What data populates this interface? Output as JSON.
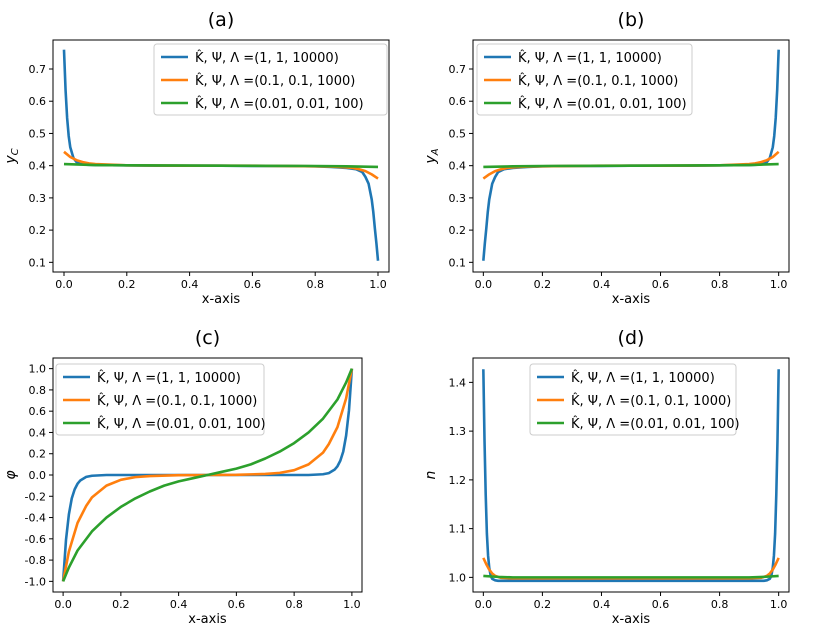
{
  "figure": {
    "legend_labels": [
      "K̂, Ψ, Λ =(1, 1, 10000)",
      "K̂, Ψ, Λ =(0.1, 0.1, 1000)",
      "K̂, Ψ, Λ =(0.01, 0.01, 100)"
    ],
    "series_colors": [
      "#1f77b4",
      "#ff7f0e",
      "#2ca02c"
    ]
  },
  "chart_data": [
    {
      "id": "a",
      "type": "line",
      "title": "(a)",
      "xlabel": "x-axis",
      "ylabel": "y_C",
      "xlim": [
        -0.035,
        1.035
      ],
      "ylim": [
        0.07,
        0.79
      ],
      "xticks": [
        0.0,
        0.2,
        0.4,
        0.6,
        0.8,
        1.0
      ],
      "xtick_labels": [
        "0.0",
        "0.2",
        "0.4",
        "0.6",
        "0.8",
        "1.0"
      ],
      "yticks": [
        0.1,
        0.2,
        0.3,
        0.4,
        0.5,
        0.6,
        0.7
      ],
      "ytick_labels": [
        "0.1",
        "0.2",
        "0.3",
        "0.4",
        "0.5",
        "0.6",
        "0.7"
      ],
      "legend_loc": "top-right",
      "series": [
        {
          "name": "K̂, Ψ, Λ =(1, 1, 10000)",
          "color": "#1f77b4",
          "x": [
            0.0,
            0.005,
            0.01,
            0.015,
            0.02,
            0.03,
            0.04,
            0.05,
            0.07,
            0.1,
            0.2,
            0.3,
            0.4,
            0.5,
            0.6,
            0.7,
            0.8,
            0.85,
            0.9,
            0.93,
            0.95,
            0.96,
            0.97,
            0.98,
            0.985,
            0.99,
            0.995,
            1.0
          ],
          "y": [
            0.76,
            0.635,
            0.548,
            0.492,
            0.457,
            0.424,
            0.411,
            0.406,
            0.403,
            0.402,
            0.401,
            0.4,
            0.4,
            0.4,
            0.399,
            0.399,
            0.398,
            0.396,
            0.393,
            0.389,
            0.38,
            0.365,
            0.344,
            0.295,
            0.256,
            0.205,
            0.158,
            0.105
          ]
        },
        {
          "name": "K̂, Ψ, Λ =(0.1, 0.1, 1000)",
          "color": "#ff7f0e",
          "x": [
            0.0,
            0.02,
            0.04,
            0.06,
            0.08,
            0.1,
            0.15,
            0.2,
            0.4,
            0.6,
            0.8,
            0.85,
            0.9,
            0.92,
            0.94,
            0.96,
            0.98,
            1.0
          ],
          "y": [
            0.443,
            0.427,
            0.417,
            0.411,
            0.407,
            0.405,
            0.403,
            0.401,
            0.4,
            0.4,
            0.398,
            0.397,
            0.395,
            0.393,
            0.389,
            0.383,
            0.373,
            0.36
          ]
        },
        {
          "name": "K̂, Ψ, Λ =(0.01, 0.01, 100)",
          "color": "#2ca02c",
          "x": [
            0.0,
            0.1,
            0.2,
            0.5,
            0.8,
            0.9,
            1.0
          ],
          "y": [
            0.405,
            0.402,
            0.401,
            0.4,
            0.399,
            0.398,
            0.396
          ]
        }
      ]
    },
    {
      "id": "b",
      "type": "line",
      "title": "(b)",
      "xlabel": "x-axis",
      "ylabel": "y_A",
      "xlim": [
        -0.035,
        1.035
      ],
      "ylim": [
        0.07,
        0.79
      ],
      "xticks": [
        0.0,
        0.2,
        0.4,
        0.6,
        0.8,
        1.0
      ],
      "xtick_labels": [
        "0.0",
        "0.2",
        "0.4",
        "0.6",
        "0.8",
        "1.0"
      ],
      "yticks": [
        0.1,
        0.2,
        0.3,
        0.4,
        0.5,
        0.6,
        0.7
      ],
      "ytick_labels": [
        "0.1",
        "0.2",
        "0.3",
        "0.4",
        "0.5",
        "0.6",
        "0.7"
      ],
      "legend_loc": "top-right",
      "series": [
        {
          "name": "K̂, Ψ, Λ =(1, 1, 10000)",
          "color": "#1f77b4",
          "x": [
            0.0,
            0.005,
            0.01,
            0.015,
            0.02,
            0.03,
            0.04,
            0.05,
            0.07,
            0.1,
            0.15,
            0.2,
            0.3,
            0.4,
            0.5,
            0.6,
            0.7,
            0.8,
            0.9,
            0.93,
            0.95,
            0.96,
            0.97,
            0.98,
            0.985,
            0.99,
            0.995,
            1.0
          ],
          "y": [
            0.105,
            0.158,
            0.205,
            0.256,
            0.295,
            0.344,
            0.365,
            0.38,
            0.389,
            0.393,
            0.396,
            0.398,
            0.399,
            0.399,
            0.4,
            0.4,
            0.4,
            0.401,
            0.402,
            0.403,
            0.406,
            0.411,
            0.424,
            0.457,
            0.492,
            0.548,
            0.635,
            0.76
          ]
        },
        {
          "name": "K̂, Ψ, Λ =(0.1, 0.1, 1000)",
          "color": "#ff7f0e",
          "x": [
            0.0,
            0.02,
            0.04,
            0.06,
            0.08,
            0.1,
            0.15,
            0.2,
            0.4,
            0.6,
            0.8,
            0.85,
            0.9,
            0.92,
            0.94,
            0.96,
            0.98,
            1.0
          ],
          "y": [
            0.36,
            0.373,
            0.383,
            0.389,
            0.393,
            0.395,
            0.397,
            0.398,
            0.4,
            0.4,
            0.401,
            0.403,
            0.405,
            0.407,
            0.411,
            0.417,
            0.427,
            0.443
          ]
        },
        {
          "name": "K̂, Ψ, Λ =(0.01, 0.01, 100)",
          "color": "#2ca02c",
          "x": [
            0.0,
            0.1,
            0.2,
            0.5,
            0.8,
            0.9,
            1.0
          ],
          "y": [
            0.396,
            0.398,
            0.399,
            0.4,
            0.401,
            0.402,
            0.405
          ]
        }
      ]
    },
    {
      "id": "c",
      "type": "line",
      "title": "(c)",
      "xlabel": "x-axis",
      "ylabel": "φ",
      "xlim": [
        -0.035,
        1.035
      ],
      "ylim": [
        -1.1,
        1.1
      ],
      "xticks": [
        0.0,
        0.2,
        0.4,
        0.6,
        0.8,
        1.0
      ],
      "xtick_labels": [
        "0.0",
        "0.2",
        "0.4",
        "0.6",
        "0.8",
        "1.0"
      ],
      "yticks": [
        -1.0,
        -0.8,
        -0.6,
        -0.4,
        -0.2,
        0.0,
        0.2,
        0.4,
        0.6,
        0.8,
        1.0
      ],
      "ytick_labels": [
        "-1.0",
        "-0.8",
        "-0.6",
        "-0.4",
        "-0.2",
        "0.0",
        "0.2",
        "0.4",
        "0.6",
        "0.8",
        "1.0"
      ],
      "legend_loc": "top-left",
      "series": [
        {
          "name": "K̂, Ψ, Λ =(1, 1, 10000)",
          "color": "#1f77b4",
          "x": [
            0.0,
            0.01,
            0.02,
            0.03,
            0.04,
            0.05,
            0.06,
            0.08,
            0.1,
            0.15,
            0.5,
            0.85,
            0.9,
            0.92,
            0.94,
            0.95,
            0.96,
            0.97,
            0.98,
            0.99,
            1.0
          ],
          "y": [
            -1.0,
            -0.61,
            -0.37,
            -0.22,
            -0.135,
            -0.082,
            -0.05,
            -0.018,
            -0.007,
            0.0,
            0.0,
            0.0,
            0.007,
            0.018,
            0.05,
            0.082,
            0.135,
            0.22,
            0.37,
            0.61,
            1.0
          ]
        },
        {
          "name": "K̂, Ψ, Λ =(0.1, 0.1, 1000)",
          "color": "#ff7f0e",
          "x": [
            0.0,
            0.02,
            0.05,
            0.08,
            0.1,
            0.15,
            0.2,
            0.25,
            0.3,
            0.4,
            0.5,
            0.6,
            0.7,
            0.75,
            0.8,
            0.85,
            0.9,
            0.92,
            0.95,
            0.98,
            1.0
          ],
          "y": [
            -1.0,
            -0.72,
            -0.45,
            -0.29,
            -0.21,
            -0.1,
            -0.045,
            -0.02,
            -0.01,
            -0.002,
            0.0,
            0.002,
            0.01,
            0.02,
            0.045,
            0.1,
            0.21,
            0.29,
            0.45,
            0.72,
            1.0
          ]
        },
        {
          "name": "K̂, Ψ, Λ =(0.01, 0.01, 100)",
          "color": "#2ca02c",
          "x": [
            0.0,
            0.02,
            0.05,
            0.1,
            0.15,
            0.2,
            0.25,
            0.3,
            0.35,
            0.4,
            0.45,
            0.5,
            0.55,
            0.6,
            0.65,
            0.7,
            0.75,
            0.8,
            0.85,
            0.9,
            0.95,
            0.98,
            1.0
          ],
          "y": [
            -1.0,
            -0.87,
            -0.71,
            -0.53,
            -0.4,
            -0.3,
            -0.22,
            -0.155,
            -0.1,
            -0.06,
            -0.03,
            0.0,
            0.03,
            0.06,
            0.1,
            0.155,
            0.22,
            0.3,
            0.4,
            0.53,
            0.71,
            0.87,
            1.0
          ]
        }
      ]
    },
    {
      "id": "d",
      "type": "line",
      "title": "(d)",
      "xlabel": "x-axis",
      "ylabel": "n",
      "xlim": [
        -0.035,
        1.035
      ],
      "ylim": [
        0.97,
        1.45
      ],
      "xticks": [
        0.0,
        0.2,
        0.4,
        0.6,
        0.8,
        1.0
      ],
      "xtick_labels": [
        "0.0",
        "0.2",
        "0.4",
        "0.6",
        "0.8",
        "1.0"
      ],
      "yticks": [
        1.0,
        1.1,
        1.2,
        1.3,
        1.4
      ],
      "ytick_labels": [
        "1.0",
        "1.1",
        "1.2",
        "1.3",
        "1.4"
      ],
      "legend_loc": "top-center",
      "series": [
        {
          "name": "K̂, Ψ, Λ =(1, 1, 10000)",
          "color": "#1f77b4",
          "x": [
            0.0,
            0.004,
            0.008,
            0.012,
            0.016,
            0.02,
            0.025,
            0.03,
            0.04,
            0.05,
            0.1,
            0.5,
            0.9,
            0.95,
            0.96,
            0.97,
            0.975,
            0.98,
            0.984,
            0.988,
            0.992,
            0.996,
            1.0
          ],
          "y": [
            1.427,
            1.28,
            1.17,
            1.09,
            1.045,
            1.02,
            1.003,
            0.997,
            0.994,
            0.993,
            0.993,
            0.993,
            0.993,
            0.993,
            0.994,
            0.997,
            1.003,
            1.02,
            1.045,
            1.09,
            1.17,
            1.28,
            1.427
          ]
        },
        {
          "name": "K̂, Ψ, Λ =(0.1, 0.1, 1000)",
          "color": "#ff7f0e",
          "x": [
            0.0,
            0.01,
            0.02,
            0.03,
            0.04,
            0.06,
            0.1,
            0.5,
            0.9,
            0.94,
            0.96,
            0.97,
            0.98,
            0.99,
            1.0
          ],
          "y": [
            1.04,
            1.027,
            1.016,
            1.008,
            1.003,
            0.999,
            0.998,
            0.998,
            0.998,
            0.999,
            1.003,
            1.008,
            1.016,
            1.027,
            1.04
          ]
        },
        {
          "name": "K̂, Ψ, Λ =(0.01, 0.01, 100)",
          "color": "#2ca02c",
          "x": [
            0.0,
            0.05,
            0.1,
            0.5,
            0.9,
            0.95,
            1.0
          ],
          "y": [
            1.003,
            1.001,
            1.0,
            1.0,
            1.0,
            1.001,
            1.003
          ]
        }
      ]
    }
  ]
}
